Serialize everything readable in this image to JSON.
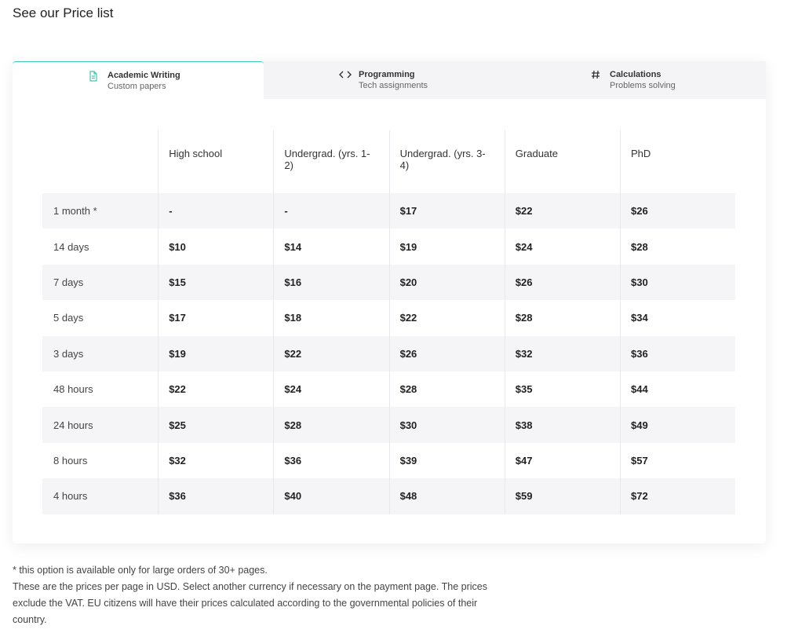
{
  "title": "See our Price list",
  "tabs": [
    {
      "title": "Academic Writing",
      "subtitle": "Custom papers"
    },
    {
      "title": "Programming",
      "subtitle": "Tech assignments"
    },
    {
      "title": "Calculations",
      "subtitle": "Problems solving"
    }
  ],
  "table": {
    "headers": [
      "High school",
      "Undergrad. (yrs. 1-2)",
      "Undergrad. (yrs. 3-4)",
      "Graduate",
      "PhD"
    ],
    "rows": [
      [
        "1 month *",
        "-",
        "-",
        "$17",
        "$22",
        "$26"
      ],
      [
        "14 days",
        "$10",
        "$14",
        "$19",
        "$24",
        "$28"
      ],
      [
        "7 days",
        "$15",
        "$16",
        "$20",
        "$26",
        "$30"
      ],
      [
        "5 days",
        "$17",
        "$18",
        "$22",
        "$28",
        "$34"
      ],
      [
        "3 days",
        "$19",
        "$22",
        "$26",
        "$32",
        "$36"
      ],
      [
        "48 hours",
        "$22",
        "$24",
        "$28",
        "$35",
        "$44"
      ],
      [
        "24 hours",
        "$25",
        "$28",
        "$30",
        "$38",
        "$49"
      ],
      [
        "8 hours",
        "$32",
        "$36",
        "$39",
        "$47",
        "$57"
      ],
      [
        "4 hours",
        "$36",
        "$40",
        "$48",
        "$59",
        "$72"
      ]
    ]
  },
  "notes": [
    "* this option is available only for large orders of 30+ pages.",
    "These are the prices per page in USD. Select another currency if necessary on the payment page. The prices exclude the VAT. EU citizens will have their prices calculated according to the governmental policies of their country."
  ]
}
